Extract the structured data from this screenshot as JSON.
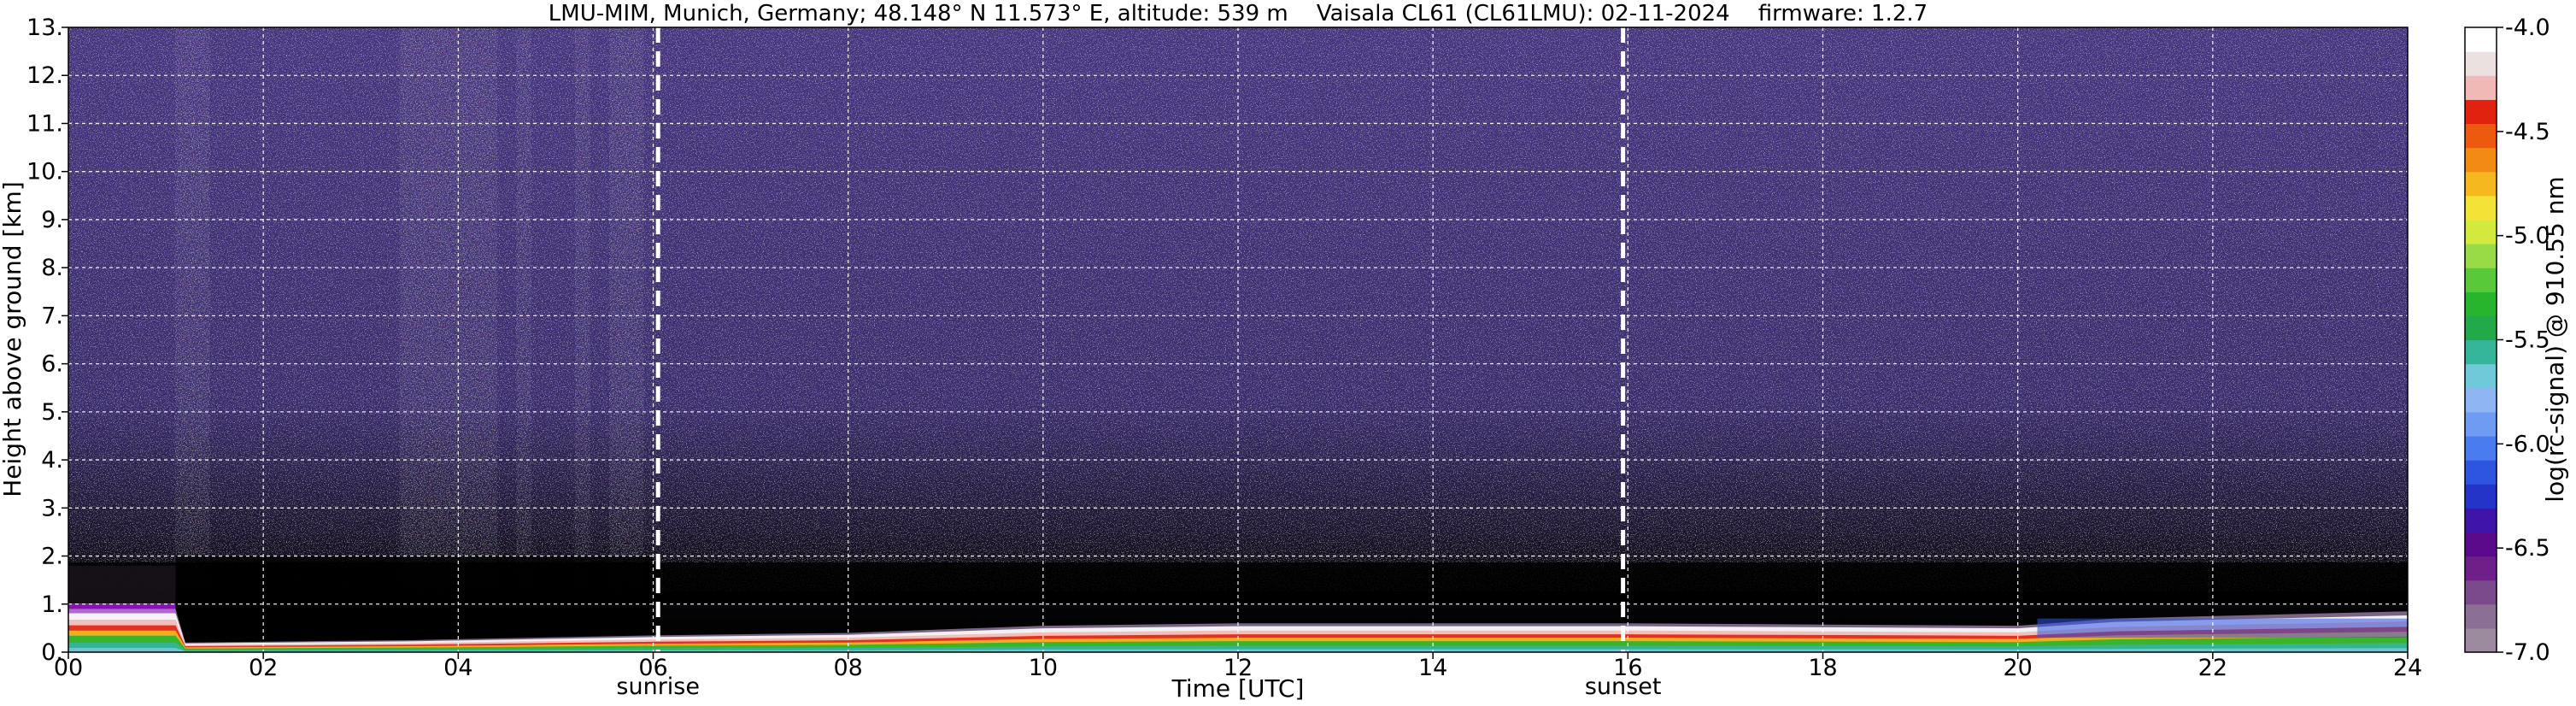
{
  "chart_data": {
    "type": "heatmap",
    "title": "LMU-MIM, Munich, Germany; 48.148° N 11.573° E, altitude: 539 m    Vaisala CL61 (CL61LMU): 02-11-2024    firmware: 1.2.7",
    "xlabel": "Time [UTC]",
    "ylabel": "Height above ground [km]",
    "xlim": [
      0,
      24
    ],
    "ylim": [
      0,
      13
    ],
    "xticks": [
      {
        "value": 0,
        "label": "00"
      },
      {
        "value": 2,
        "label": "02"
      },
      {
        "value": 4,
        "label": "04"
      },
      {
        "value": 6,
        "label": "06"
      },
      {
        "value": 8,
        "label": "08"
      },
      {
        "value": 10,
        "label": "10"
      },
      {
        "value": 12,
        "label": "12"
      },
      {
        "value": 14,
        "label": "14"
      },
      {
        "value": 16,
        "label": "16"
      },
      {
        "value": 18,
        "label": "18"
      },
      {
        "value": 20,
        "label": "20"
      },
      {
        "value": 22,
        "label": "22"
      },
      {
        "value": 24,
        "label": "24"
      }
    ],
    "yticks": [
      {
        "value": 0,
        "label": "0."
      },
      {
        "value": 1,
        "label": "1."
      },
      {
        "value": 2,
        "label": "2."
      },
      {
        "value": 3,
        "label": "3."
      },
      {
        "value": 4,
        "label": "4."
      },
      {
        "value": 5,
        "label": "5."
      },
      {
        "value": 6,
        "label": "6."
      },
      {
        "value": 7,
        "label": "7."
      },
      {
        "value": 8,
        "label": "8."
      },
      {
        "value": 9,
        "label": "9."
      },
      {
        "value": 10,
        "label": "10."
      },
      {
        "value": 11,
        "label": "11."
      },
      {
        "value": 12,
        "label": "12."
      },
      {
        "value": 13,
        "label": "13."
      }
    ],
    "grid": true,
    "annotations": [
      {
        "label": "sunrise",
        "x": 6.05
      },
      {
        "label": "sunset",
        "x": 15.95
      }
    ],
    "colorbar": {
      "label": "log(rc-signal) @ 910.55 nm",
      "range": [
        -7.0,
        -4.0
      ],
      "ticks": [
        {
          "value": -4.0,
          "label": "-4.0"
        },
        {
          "value": -4.5,
          "label": "-4.5"
        },
        {
          "value": -5.0,
          "label": "-5.0"
        },
        {
          "value": -5.5,
          "label": "-5.5"
        },
        {
          "value": -6.0,
          "label": "-6.0"
        },
        {
          "value": -6.5,
          "label": "-6.5"
        },
        {
          "value": -7.0,
          "label": "-7.0"
        }
      ],
      "colors": [
        "#9c8a9e",
        "#8c6f94",
        "#7a4a8c",
        "#6e1f88",
        "#5a0a8a",
        "#3f14a8",
        "#2434c8",
        "#2e55e0",
        "#4a7cf0",
        "#6f9cf2",
        "#8fb6f2",
        "#6fc9d8",
        "#35b59a",
        "#23a84a",
        "#27b52e",
        "#59c93a",
        "#98db46",
        "#d2ea3e",
        "#f3e336",
        "#f6b81f",
        "#f28a14",
        "#ec5a10",
        "#e0220e",
        "#f0b9b5",
        "#ece1e1",
        "#ffffff"
      ]
    },
    "features": {
      "boundary_layer_top_km": [
        {
          "t": 0,
          "h": 0.9
        },
        {
          "t": 1.1,
          "h": 0.9
        },
        {
          "t": 1.2,
          "h": 0.2
        },
        {
          "t": 3.5,
          "h": 0.25
        },
        {
          "t": 6,
          "h": 0.35
        },
        {
          "t": 8,
          "h": 0.4
        },
        {
          "t": 10,
          "h": 0.55
        },
        {
          "t": 12,
          "h": 0.6
        },
        {
          "t": 16,
          "h": 0.6
        },
        {
          "t": 20,
          "h": 0.55
        },
        {
          "t": 21,
          "h": 0.7
        },
        {
          "t": 24,
          "h": 0.85
        }
      ]
    }
  }
}
